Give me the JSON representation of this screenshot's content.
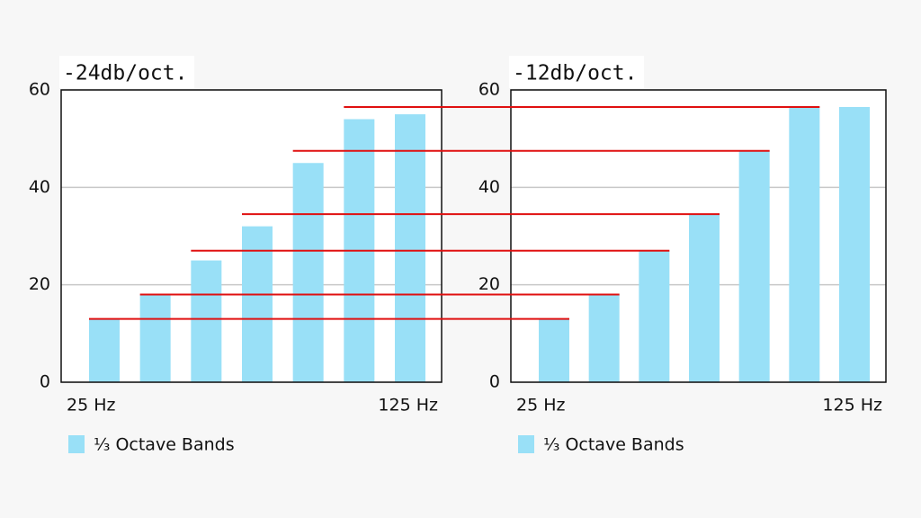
{
  "chart_data": [
    {
      "type": "bar",
      "title": "-24db/oct.",
      "categories": [
        "25 Hz",
        null,
        null,
        null,
        null,
        null,
        "125 Hz"
      ],
      "series": [
        {
          "name": "⅓ Octave Bands",
          "color": "#99e0f7",
          "values": [
            13,
            18,
            25,
            32,
            45,
            54,
            55
          ]
        }
      ],
      "ylim": [
        0,
        60
      ],
      "yticks": [
        0,
        20,
        40,
        60
      ],
      "grid": true
    },
    {
      "type": "bar",
      "title": "-12db/oct.",
      "categories": [
        "25 Hz",
        null,
        null,
        null,
        null,
        null,
        "125 Hz"
      ],
      "series": [
        {
          "name": "⅓ Octave Bands",
          "color": "#99e0f7",
          "values": [
            13,
            18,
            27,
            34.5,
            47.5,
            56.5,
            56.5
          ]
        }
      ],
      "ylim": [
        0,
        60
      ],
      "yticks": [
        0,
        20,
        40,
        60
      ],
      "grid": true
    }
  ]
}
